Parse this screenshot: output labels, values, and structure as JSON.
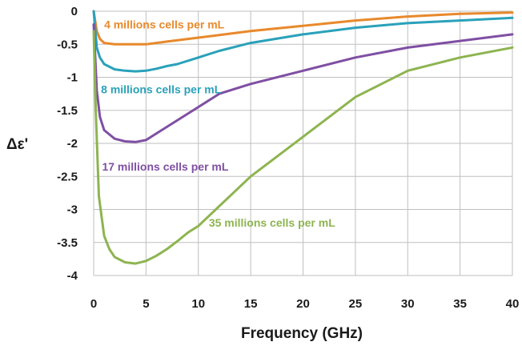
{
  "chart_data": {
    "type": "line",
    "xlabel": "Frequency (GHz)",
    "ylabel": "Δε'",
    "xlim": [
      0,
      40
    ],
    "ylim": [
      -4,
      0
    ],
    "x_ticks": [
      0,
      5,
      10,
      15,
      20,
      25,
      30,
      35,
      40
    ],
    "y_ticks": [
      0,
      -0.5,
      -1,
      -1.5,
      -2,
      -2.5,
      -3,
      -3.5,
      -4
    ],
    "y_tick_labels": [
      "0",
      "-0.5",
      "-1",
      "-1.5",
      "-2",
      "-2.5",
      "-3",
      "-3.5",
      "-4"
    ],
    "grid": true,
    "series": [
      {
        "name": "4 millions cells per mL",
        "color": "#E8892B",
        "x": [
          0,
          0.3,
          0.6,
          1,
          2,
          3,
          4,
          5,
          6,
          7,
          8,
          10,
          12,
          15,
          20,
          25,
          30,
          35,
          40
        ],
        "y": [
          0,
          -0.3,
          -0.42,
          -0.48,
          -0.5,
          -0.5,
          -0.5,
          -0.5,
          -0.48,
          -0.46,
          -0.44,
          -0.4,
          -0.36,
          -0.3,
          -0.22,
          -0.14,
          -0.08,
          -0.04,
          -0.02
        ]
      },
      {
        "name": "8 millions cells per mL",
        "color": "#2AA1BA",
        "x": [
          0,
          0.3,
          0.6,
          1,
          2,
          3,
          4,
          5,
          6,
          7,
          8,
          10,
          12,
          15,
          20,
          25,
          30,
          35,
          40
        ],
        "y": [
          0,
          -0.55,
          -0.7,
          -0.8,
          -0.88,
          -0.9,
          -0.91,
          -0.9,
          -0.87,
          -0.83,
          -0.8,
          -0.7,
          -0.6,
          -0.48,
          -0.35,
          -0.25,
          -0.18,
          -0.14,
          -0.1
        ]
      },
      {
        "name": "17 millions cells per mL",
        "color": "#7F4FA3",
        "x": [
          0,
          0.3,
          0.6,
          1,
          2,
          3,
          4,
          5,
          6,
          7,
          8,
          10,
          12,
          15,
          20,
          25,
          30,
          35,
          40
        ],
        "y": [
          -0.2,
          -1.2,
          -1.6,
          -1.8,
          -1.93,
          -1.97,
          -1.98,
          -1.95,
          -1.85,
          -1.75,
          -1.65,
          -1.45,
          -1.25,
          -1.1,
          -0.9,
          -0.7,
          -0.55,
          -0.45,
          -0.35
        ]
      },
      {
        "name": "35 millions cells per mL",
        "color": "#8DB450",
        "x": [
          0,
          0.2,
          0.5,
          1,
          1.5,
          2,
          3,
          4,
          5,
          6,
          7,
          8,
          9,
          10,
          11,
          12,
          15,
          20,
          25,
          30,
          35,
          40
        ],
        "y": [
          -0.3,
          -1.5,
          -2.8,
          -3.4,
          -3.6,
          -3.72,
          -3.8,
          -3.82,
          -3.78,
          -3.7,
          -3.6,
          -3.48,
          -3.35,
          -3.25,
          -3.1,
          -2.95,
          -2.5,
          -1.9,
          -1.3,
          -0.9,
          -0.7,
          -0.55
        ]
      }
    ],
    "annotations": [
      {
        "text": "4 millions cells per mL",
        "series": 0,
        "x": 1.0,
        "y": -0.2
      },
      {
        "text": "8 millions cells per mL",
        "series": 1,
        "x": 0.7,
        "y": -1.18
      },
      {
        "text": "17 millions cells per mL",
        "series": 2,
        "x": 0.8,
        "y": -2.35
      },
      {
        "text": "35 millions cells per mL",
        "series": 3,
        "x": 11.0,
        "y": -3.2
      }
    ]
  }
}
